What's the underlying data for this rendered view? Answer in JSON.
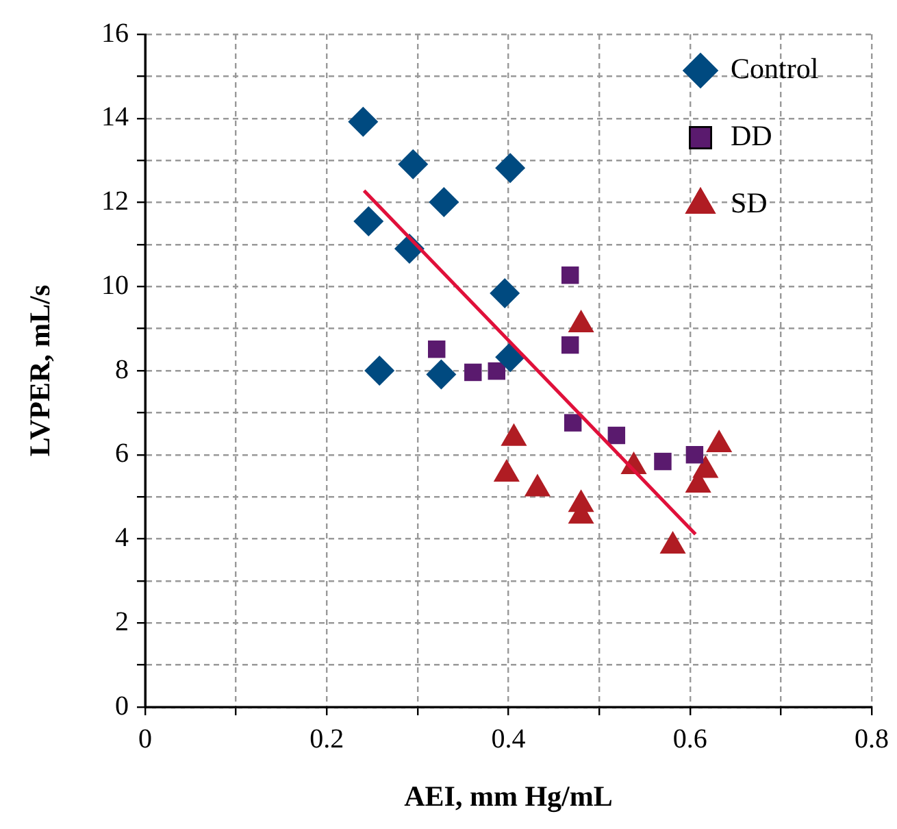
{
  "chart_data": {
    "type": "scatter",
    "xlabel": "AEI, mm Hg/mL",
    "ylabel": "LVPER, mL/s",
    "xlim": [
      0,
      0.8
    ],
    "xticks": [
      0,
      {
        "value": 0.1,
        "label": null
      },
      0.2,
      {
        "value": 0.3,
        "label": null
      },
      0.4,
      {
        "value": 0.5,
        "label": null
      },
      0.6,
      {
        "value": 0.7,
        "label": null
      },
      0.8
    ],
    "ylim": [
      0,
      16
    ],
    "yticks": [
      0,
      {
        "value": 1,
        "label": null
      },
      2,
      {
        "value": 3,
        "label": null
      },
      4,
      {
        "value": 5,
        "label": null
      },
      6,
      {
        "value": 7,
        "label": null
      },
      8,
      {
        "value": 9,
        "label": null
      },
      10,
      {
        "value": 11,
        "label": null
      },
      12,
      {
        "value": 13,
        "label": null
      },
      14,
      {
        "value": 15,
        "label": null
      },
      16
    ],
    "grid": true,
    "legend": "top right",
    "series": [
      {
        "name": "Control",
        "color": "#004a80",
        "marker": "diamond",
        "x": [
          0.24,
          0.295,
          0.402,
          0.329,
          0.246,
          0.291,
          0.396,
          0.402,
          0.258,
          0.326
        ],
        "values": [
          13.92,
          12.91,
          12.82,
          12.01,
          11.55,
          10.9,
          9.84,
          8.32,
          8.0,
          7.91
        ]
      },
      {
        "name": "DD",
        "color": "#5a1a6e",
        "marker": "square",
        "x": [
          0.468,
          0.321,
          0.361,
          0.387,
          0.468,
          0.471,
          0.519,
          0.57,
          0.605
        ],
        "values": [
          10.27,
          8.51,
          7.96,
          7.99,
          8.61,
          6.76,
          6.46,
          5.84,
          6.0
        ]
      },
      {
        "name": "SD",
        "color": "#b01c23",
        "marker": "triangle",
        "x": [
          0.48,
          0.406,
          0.398,
          0.432,
          0.48,
          0.48,
          0.538,
          0.581,
          0.632,
          0.617,
          0.609
        ],
        "values": [
          9.09,
          6.39,
          5.54,
          5.19,
          4.82,
          4.54,
          5.72,
          3.83,
          6.24,
          5.63,
          5.28
        ]
      },
      {
        "type": "line",
        "color": "#e0103a",
        "marker": "none",
        "line_style": "solid",
        "x": [
          0.241,
          0.606
        ],
        "values": [
          12.28,
          4.11
        ]
      }
    ]
  }
}
